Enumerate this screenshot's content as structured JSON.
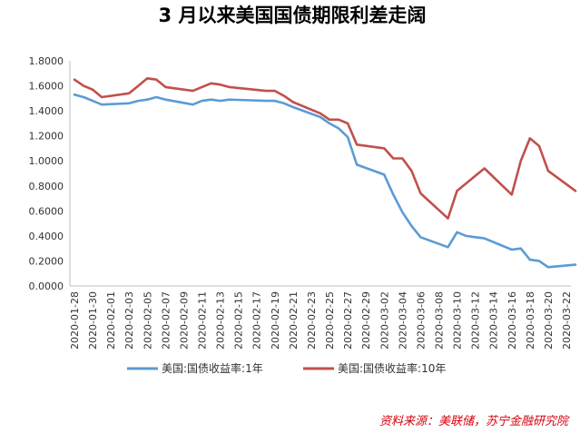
{
  "chart_data": {
    "type": "line",
    "title": "3 月以来美国国债期限利差走阔",
    "source": "资料来源：美联储，苏宁金融研究院",
    "ylim": [
      0,
      1.8
    ],
    "yticks": [
      "0.0000",
      "0.2000",
      "0.4000",
      "0.6000",
      "0.8000",
      "1.0000",
      "1.2000",
      "1.4000",
      "1.6000",
      "1.8000"
    ],
    "grid": false,
    "legend_position": "bottom",
    "x": [
      "2020-01-28",
      "2020-01-29",
      "2020-01-30",
      "2020-01-31",
      "2020-02-03",
      "2020-02-04",
      "2020-02-05",
      "2020-02-06",
      "2020-02-07",
      "2020-02-10",
      "2020-02-11",
      "2020-02-12",
      "2020-02-13",
      "2020-02-14",
      "2020-02-18",
      "2020-02-19",
      "2020-02-20",
      "2020-02-21",
      "2020-02-24",
      "2020-02-25",
      "2020-02-26",
      "2020-02-27",
      "2020-02-28",
      "2020-03-02",
      "2020-03-03",
      "2020-03-04",
      "2020-03-05",
      "2020-03-06",
      "2020-03-09",
      "2020-03-10",
      "2020-03-11",
      "2020-03-12",
      "2020-03-13",
      "2020-03-16",
      "2020-03-17",
      "2020-03-18",
      "2020-03-19",
      "2020-03-20",
      "2020-03-23"
    ],
    "x_tick_labels": [
      "2020-01-28",
      "2020-01-30",
      "2020-02-01",
      "2020-02-03",
      "2020-02-05",
      "2020-02-07",
      "2020-02-09",
      "2020-02-11",
      "2020-02-13",
      "2020-02-15",
      "2020-02-17",
      "2020-02-19",
      "2020-02-21",
      "2020-02-23",
      "2020-02-25",
      "2020-02-27",
      "2020-02-29",
      "2020-03-02",
      "2020-03-04",
      "2020-03-06",
      "2020-03-08",
      "2020-03-10",
      "2020-03-12",
      "2020-03-14",
      "2020-03-16",
      "2020-03-18",
      "2020-03-20",
      "2020-03-22"
    ],
    "series": [
      {
        "name": "美国:国债收益率:1年",
        "color": "#5b9bd5",
        "values": [
          1.53,
          1.51,
          1.48,
          1.45,
          1.46,
          1.48,
          1.49,
          1.51,
          1.49,
          1.45,
          1.48,
          1.49,
          1.48,
          1.49,
          1.48,
          1.48,
          1.46,
          1.43,
          1.35,
          1.3,
          1.26,
          1.19,
          0.97,
          0.89,
          0.73,
          0.59,
          0.48,
          0.39,
          0.31,
          0.43,
          0.4,
          0.39,
          0.38,
          0.29,
          0.3,
          0.21,
          0.2,
          0.15,
          0.17
        ]
      },
      {
        "name": "美国:国债收益率:10年",
        "color": "#c0504d",
        "values": [
          1.65,
          1.6,
          1.57,
          1.51,
          1.54,
          1.6,
          1.66,
          1.65,
          1.59,
          1.56,
          1.59,
          1.62,
          1.61,
          1.59,
          1.56,
          1.56,
          1.52,
          1.47,
          1.38,
          1.33,
          1.33,
          1.3,
          1.13,
          1.1,
          1.02,
          1.02,
          0.92,
          0.74,
          0.54,
          0.76,
          0.82,
          0.88,
          0.94,
          0.73,
          1.0,
          1.18,
          1.12,
          0.92,
          0.76
        ]
      }
    ]
  }
}
